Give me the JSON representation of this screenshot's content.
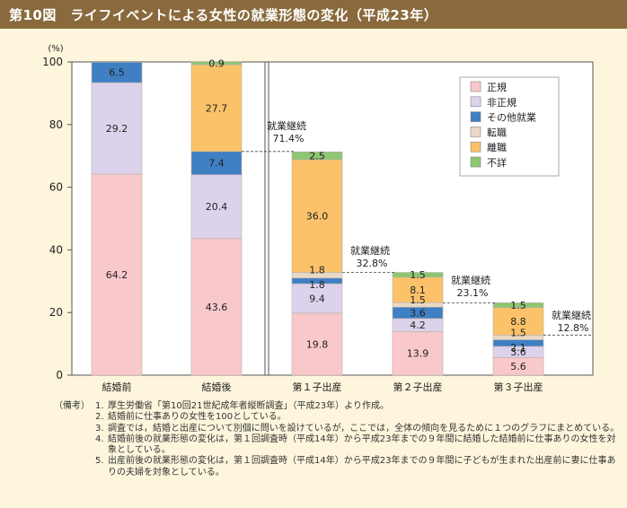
{
  "title": "第10図　ライフイベントによる女性の就業形態の変化（平成23年）",
  "chart_data": {
    "type": "bar",
    "stacked": true,
    "ylabel": "(%)",
    "ylim": [
      0,
      100
    ],
    "yticks": [
      0,
      20,
      40,
      60,
      80,
      100
    ],
    "categories": [
      "結婚前",
      "結婚後",
      "第１子出産",
      "第２子出産",
      "第３子出産"
    ],
    "series": [
      {
        "name": "正規",
        "color": "#f9c8cb",
        "values": [
          64.2,
          43.6,
          19.8,
          13.9,
          5.6
        ]
      },
      {
        "name": "非正規",
        "color": "#ddd2ec",
        "values": [
          29.2,
          20.4,
          9.4,
          4.2,
          3.6
        ]
      },
      {
        "name": "その他就業",
        "color": "#3f7fc4",
        "values": [
          6.5,
          7.4,
          1.8,
          3.6,
          2.1
        ]
      },
      {
        "name": "転職",
        "color": "#ead8c6",
        "values": [
          null,
          null,
          1.8,
          1.5,
          1.5
        ]
      },
      {
        "name": "離職",
        "color": "#fbc26a",
        "values": [
          null,
          27.7,
          36.0,
          8.1,
          8.8
        ]
      },
      {
        "name": "不詳",
        "color": "#8cc672",
        "values": [
          null,
          0.9,
          2.5,
          1.5,
          1.5
        ]
      }
    ],
    "annotations": [
      {
        "label": "就業継続",
        "value": "71.4%"
      },
      {
        "label": "就業継続",
        "value": "32.8%"
      },
      {
        "label": "就業継続",
        "value": "23.1%"
      },
      {
        "label": "就業継続",
        "value": "12.8%"
      }
    ]
  },
  "notes": {
    "label": "（備考）",
    "items": [
      {
        "num": "1.",
        "text": "厚生労働省「第10回21世紀成年者縦断調査」（平成23年）より作成。"
      },
      {
        "num": "2.",
        "text": "結婚前に仕事ありの女性を100としている。"
      },
      {
        "num": "3.",
        "text": "調査では，結婚と出産について別個に問いを設けているが，ここでは，全体の傾向を見るために１つのグラフにまとめている。"
      },
      {
        "num": "4.",
        "text": "結婚前後の就業形態の変化は，第１回調査時（平成14年）から平成23年までの９年間に結婚した結婚前に仕事ありの女性を対象としている。"
      },
      {
        "num": "5.",
        "text": "出産前後の就業形態の変化は，第１回調査時（平成14年）から平成23年までの９年間に子どもが生まれた出産前に妻に仕事ありの夫婦を対象としている。"
      }
    ]
  }
}
